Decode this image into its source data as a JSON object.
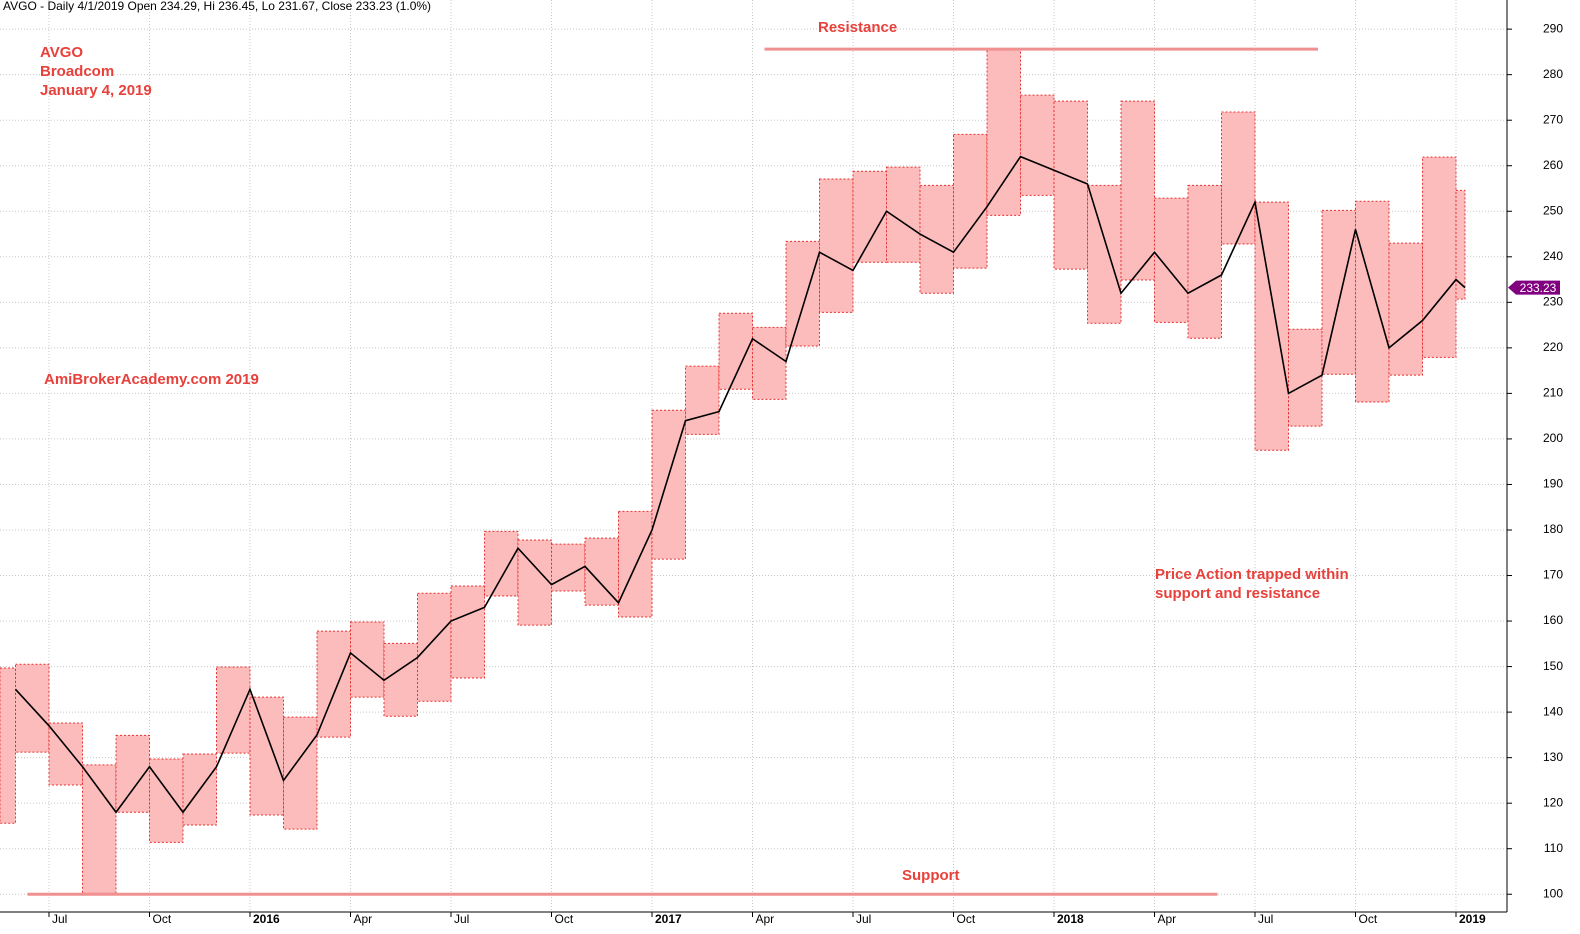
{
  "chart_data": {
    "type": "range-box",
    "title": "AVGO - Daily 4/1/2019 Open 234.29, Hi 236.45, Lo 231.67, Close 233.23 (1.0%)",
    "notes": [
      "AVGO",
      "Broadcom",
      "January 4, 2019"
    ],
    "watermark": "AmiBrokerAcademy.com  2019",
    "caption": [
      "Price Action trapped within",
      "support and resistance"
    ],
    "x": [
      "2015-05",
      "2015-06",
      "2015-07",
      "2015-08",
      "2015-09",
      "2015-10",
      "2015-11",
      "2015-12",
      "2016-01",
      "2016-02",
      "2016-03",
      "2016-04",
      "2016-05",
      "2016-06",
      "2016-07",
      "2016-08",
      "2016-09",
      "2016-10",
      "2016-11",
      "2016-12",
      "2017-01",
      "2017-02",
      "2017-03",
      "2017-04",
      "2017-05",
      "2017-06",
      "2017-07",
      "2017-08",
      "2017-09",
      "2017-10",
      "2017-11",
      "2017-12",
      "2018-01",
      "2018-02",
      "2018-03",
      "2018-04",
      "2018-05",
      "2018-06",
      "2018-07",
      "2018-08",
      "2018-09",
      "2018-10",
      "2018-11",
      "2018-12",
      "2019-01"
    ],
    "high": [
      149.7,
      150.5,
      137.6,
      128.4,
      134.9,
      129.7,
      130.8,
      149.9,
      143.3,
      138.9,
      157.8,
      159.8,
      155.1,
      166.1,
      167.7,
      179.7,
      177.8,
      176.9,
      178.2,
      184.1,
      206.3,
      216.0,
      227.6,
      224.5,
      243.4,
      257.1,
      258.8,
      259.7,
      255.7,
      266.9,
      285.6,
      275.5,
      274.2,
      255.7,
      274.2,
      252.9,
      255.7,
      271.8,
      252.0,
      224.1,
      250.2,
      252.2,
      243.0,
      261.9,
      254.6
    ],
    "low": [
      115.6,
      131.2,
      124.0,
      100.2,
      118.0,
      111.4,
      115.2,
      131.0,
      117.4,
      114.3,
      134.5,
      143.3,
      139.1,
      142.4,
      147.5,
      165.5,
      159.1,
      166.6,
      163.5,
      160.9,
      173.6,
      201.0,
      210.9,
      208.7,
      220.4,
      227.8,
      238.8,
      238.8,
      232.0,
      237.5,
      249.1,
      253.5,
      237.3,
      225.4,
      234.9,
      225.6,
      222.1,
      242.8,
      197.5,
      202.8,
      214.2,
      208.1,
      214.0,
      217.9,
      230.7
    ],
    "close": [
      145,
      137,
      128,
      118,
      128,
      118,
      128,
      145,
      125,
      135,
      153,
      147,
      152,
      160,
      163,
      176,
      168,
      172,
      164,
      180,
      204,
      206,
      222,
      217,
      241,
      237,
      250,
      245,
      241,
      251,
      262,
      259,
      256,
      232,
      241,
      232,
      236,
      252,
      210,
      214,
      246,
      220,
      226,
      235,
      233.23
    ],
    "box_color": "#fcbcbc",
    "line_color": "#000000",
    "levels": [
      {
        "label": "Resistance",
        "value": 285.6,
        "start": "2017-04",
        "end": "2018-09"
      },
      {
        "label": "Support",
        "value": 100,
        "start": "2015-06",
        "end": "2018-06"
      }
    ],
    "ylim": [
      96.1,
      296.4
    ],
    "yticks": [
      100,
      110,
      120,
      130,
      140,
      150,
      160,
      170,
      180,
      190,
      200,
      210,
      220,
      230,
      240,
      250,
      260,
      270,
      280,
      290
    ],
    "xticks": [
      {
        "value": "2015-07",
        "label": "Jul"
      },
      {
        "value": "2015-10",
        "label": "Oct"
      },
      {
        "value": "2016-01",
        "label": "2016"
      },
      {
        "value": "2016-04",
        "label": "Apr"
      },
      {
        "value": "2016-07",
        "label": "Jul"
      },
      {
        "value": "2016-10",
        "label": "Oct"
      },
      {
        "value": "2017-01",
        "label": "2017"
      },
      {
        "value": "2017-04",
        "label": "Apr"
      },
      {
        "value": "2017-07",
        "label": "Jul"
      },
      {
        "value": "2017-10",
        "label": "Oct"
      },
      {
        "value": "2018-01",
        "label": "2018"
      },
      {
        "value": "2018-04",
        "label": "Apr"
      },
      {
        "value": "2018-07",
        "label": "Jul"
      },
      {
        "value": "2018-10",
        "label": "Oct"
      },
      {
        "value": "2019-01",
        "label": "2019"
      }
    ],
    "grid": true,
    "price_tag_color": "#800080"
  }
}
